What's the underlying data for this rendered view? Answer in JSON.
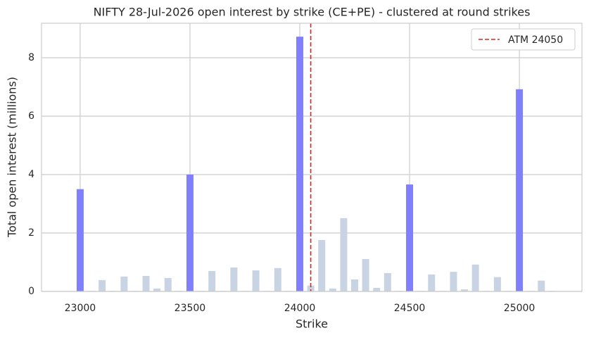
{
  "chart_data": {
    "type": "bar",
    "title": "NIFTY 28-Jul-2026 open interest by strike (CE+PE) - clustered at round strikes",
    "x_label": "Strike",
    "y_label": "Total open interest (millions)",
    "x": [
      23000,
      23050,
      23100,
      23150,
      23200,
      23250,
      23300,
      23350,
      23400,
      23450,
      23500,
      23550,
      23600,
      23650,
      23700,
      23750,
      23800,
      23850,
      23900,
      23950,
      24000,
      24050,
      24100,
      24150,
      24200,
      24250,
      24300,
      24350,
      24400,
      24450,
      24500,
      24550,
      24600,
      24650,
      24700,
      24750,
      24800,
      24850,
      24900,
      24950,
      25000,
      25050,
      25100,
      25150
    ],
    "values": [
      3.5,
      0.02,
      0.39,
      0.02,
      0.51,
      0.02,
      0.53,
      0.1,
      0.46,
      0.02,
      4.0,
      0.02,
      0.7,
      0.02,
      0.82,
      0.02,
      0.72,
      0.02,
      0.8,
      0.02,
      8.72,
      0.2,
      1.76,
      0.1,
      2.51,
      0.41,
      1.11,
      0.12,
      0.63,
      0.02,
      3.66,
      0.02,
      0.58,
      0.02,
      0.67,
      0.07,
      0.92,
      0.02,
      0.49,
      0.02,
      6.92,
      0.02,
      0.37,
      0.02
    ],
    "round_color": "#8080ff",
    "other_color": "#c8d4e3",
    "round_step": 500,
    "bar_width": 32,
    "xlim": [
      22824,
      25285
    ],
    "ylim": [
      0,
      9.18
    ],
    "xticks": [
      23000,
      23500,
      24000,
      24500,
      25000
    ],
    "yticks": [
      0,
      2,
      4,
      6,
      8
    ],
    "grid": true,
    "vline": {
      "x": 24050,
      "label": "ATM 24050",
      "color": "#d62728"
    },
    "legend": "upper right"
  }
}
